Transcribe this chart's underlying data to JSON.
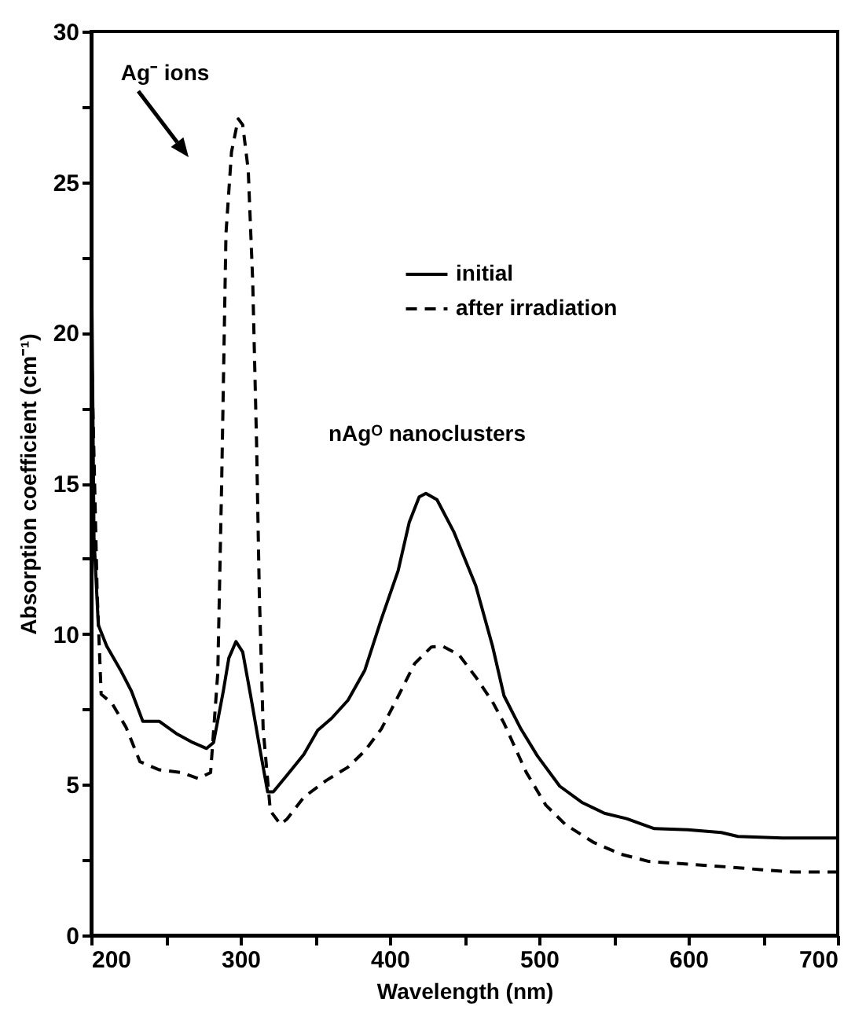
{
  "chart_data": {
    "type": "line",
    "xlabel": "Wavelength (nm)",
    "ylabel": "Absorption coefficient (cm⁻¹)",
    "xlim": [
      200,
      700
    ],
    "ylim": [
      0,
      30
    ],
    "xticks": [
      200,
      {
        "value": 250,
        "label": null
      },
      300,
      {
        "value": 350,
        "label": null
      },
      400,
      {
        "value": 450,
        "label": null
      },
      500,
      {
        "value": 550,
        "label": null
      },
      600,
      {
        "value": 650,
        "label": null
      },
      700
    ],
    "yticks": [
      0,
      {
        "value": 2.5,
        "label": null
      },
      5,
      {
        "value": 7.5,
        "label": null
      },
      10,
      {
        "value": 12.5,
        "label": null
      },
      15,
      {
        "value": 17.5,
        "label": null
      },
      20,
      {
        "value": 22.5,
        "label": null
      },
      25,
      {
        "value": 27.5,
        "label": null
      },
      30
    ],
    "legend": "top right",
    "annotations": [
      "Ag⁻ ions",
      {
        "text": "nAgᴼ nanoclusters",
        "x": 425,
        "y": 14.7
      }
    ],
    "series": [
      {
        "name": "initial",
        "color": "#000000",
        "line_style": "solid",
        "x": [
          200,
          201.9,
          204.8,
          210.4,
          219.7,
          227,
          234.6,
          245.7,
          256.9,
          268,
          277.3,
          282,
          288.5,
          292.2,
          297,
          301.5,
          307,
          312.6,
          318.2,
          322,
          331,
          342.4,
          351.7,
          361,
          372,
          383.3,
          394.4,
          405.6,
          413,
          419.7,
          424.2,
          431.6,
          442.8,
          457.6,
          468.8,
          476.5,
          487.7,
          498.9,
          513.8,
          528.7,
          543.7,
          558.6,
          577.2,
          599.6,
          622,
          633.2,
          663,
          700
        ],
        "values": [
          23.8,
          13.2,
          10.3,
          9.6,
          8.8,
          8.1,
          7.1,
          7.1,
          6.7,
          6.4,
          6.2,
          6.4,
          8.1,
          9.2,
          9.75,
          9.4,
          7.9,
          6.3,
          4.76,
          4.76,
          5.3,
          6.0,
          6.8,
          7.2,
          7.8,
          8.8,
          10.5,
          12.1,
          13.7,
          14.55,
          14.67,
          14.46,
          13.4,
          11.6,
          9.6,
          7.95,
          6.86,
          5.95,
          4.95,
          4.41,
          4.05,
          3.87,
          3.54,
          3.5,
          3.41,
          3.28,
          3.23,
          3.23
        ]
      },
      {
        "name": "after irradiation",
        "color": "#000000",
        "line_style": "dashed",
        "x": [
          200,
          204,
          206.7,
          214,
          223.4,
          232.7,
          245.7,
          260.6,
          271.7,
          280,
          284.8,
          287.4,
          290.3,
          294,
          298.5,
          301.5,
          305.2,
          308.2,
          310.8,
          312.6,
          315.2,
          320,
          326.8,
          331.2,
          342.4,
          357.2,
          372,
          383.3,
          394.4,
          405.6,
          416.7,
          427.9,
          435.3,
          446.5,
          457.6,
          468.8,
          476.5,
          491.4,
          504.5,
          517.5,
          536.2,
          554.9,
          573.5,
          599.6,
          625.7,
          648,
          670.5,
          700
        ],
        "values": [
          20,
          11.4,
          8.0,
          7.7,
          6.9,
          5.76,
          5.49,
          5.4,
          5.2,
          5.4,
          8.7,
          15,
          23.3,
          26.0,
          27.1,
          26.9,
          25.4,
          21.7,
          16.3,
          11.4,
          6.85,
          4.13,
          3.68,
          3.86,
          4.58,
          5.13,
          5.58,
          6.12,
          6.85,
          7.93,
          9.02,
          9.57,
          9.6,
          9.3,
          8.57,
          7.75,
          7.04,
          5.41,
          4.32,
          3.68,
          3.09,
          2.69,
          2.45,
          2.36,
          2.27,
          2.18,
          2.1,
          2.1
        ]
      }
    ]
  }
}
